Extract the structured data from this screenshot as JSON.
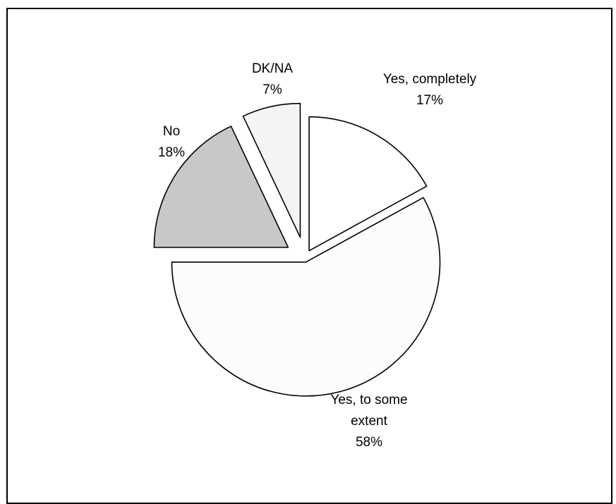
{
  "chart_data": {
    "type": "pie",
    "start_angle_deg": 0,
    "direction": "clockwise",
    "exploded": true,
    "slices": [
      {
        "label": "Yes, completely",
        "value": 17,
        "value_label": "17%",
        "color": "#ffffff"
      },
      {
        "label": "Yes, to some extent",
        "value": 58,
        "value_label": "58%",
        "color": "#fcfcfc"
      },
      {
        "label": "No",
        "value": 18,
        "value_label": "18%",
        "color": "#c8c8c8"
      },
      {
        "label": "DK/NA",
        "value": 7,
        "value_label": "7%",
        "color": "#f4f4f4"
      }
    ]
  }
}
